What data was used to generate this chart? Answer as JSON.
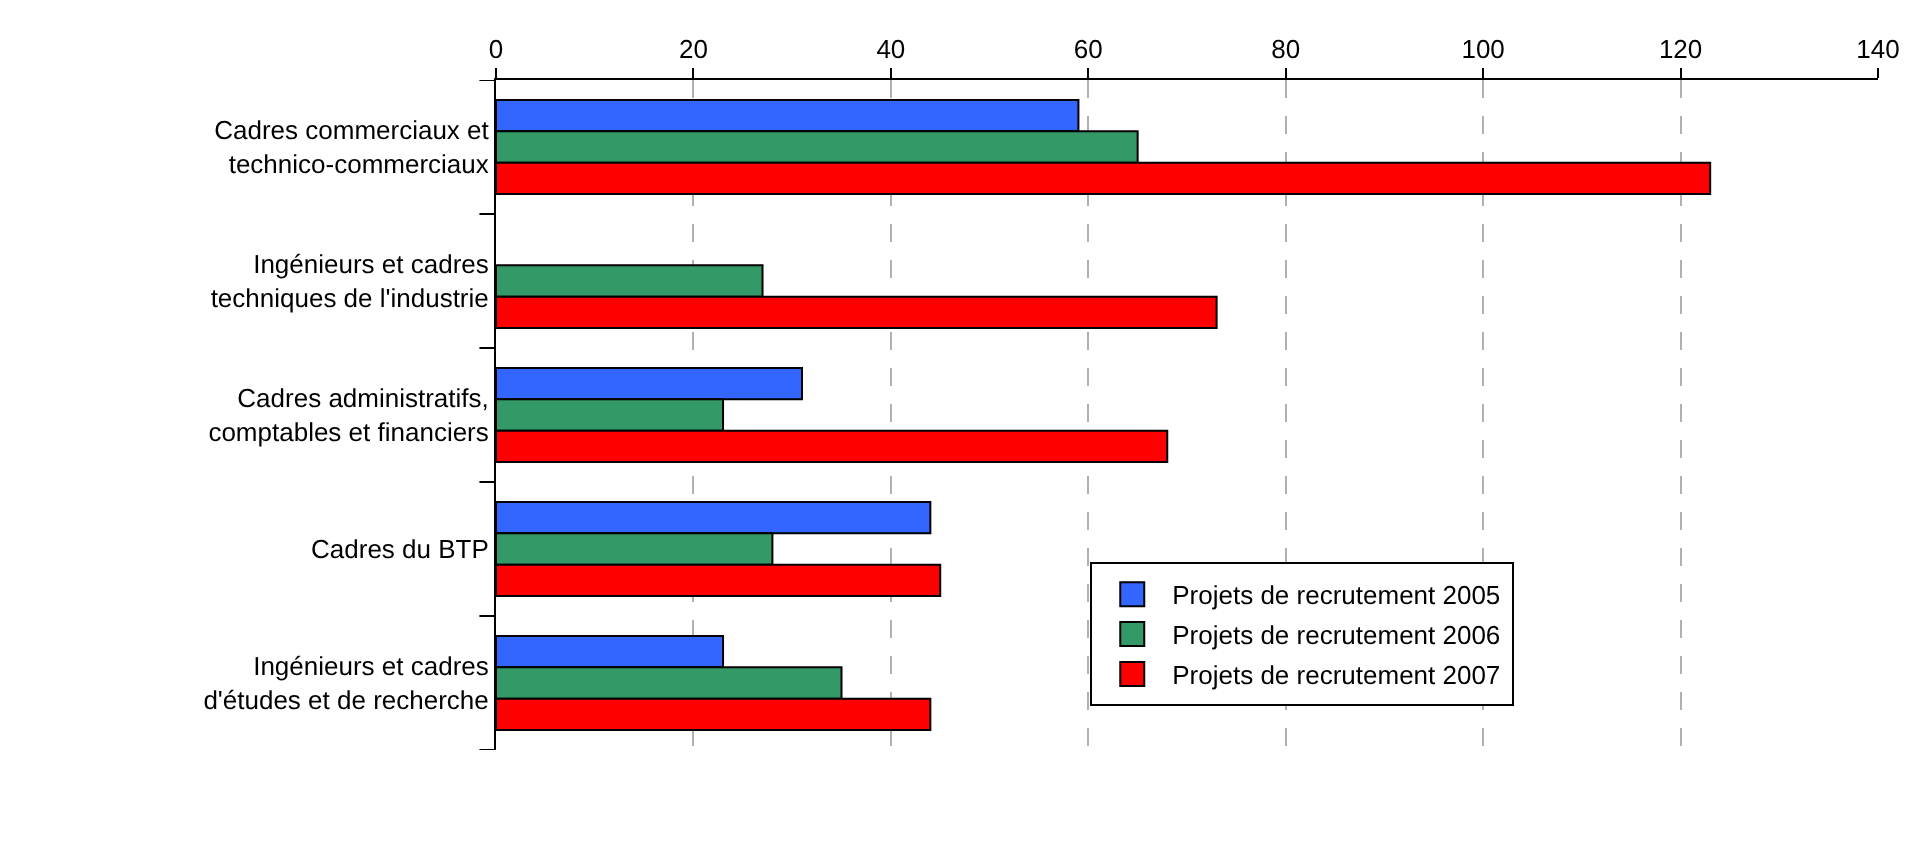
{
  "chart_data": {
    "type": "bar",
    "orientation": "horizontal",
    "categories": [
      "Cadres commerciaux et technico-commerciaux",
      "Ingénieurs et cadres techniques de l'industrie",
      "Cadres administratifs, comptables et financiers",
      "Cadres du BTP",
      "Ingénieurs et cadres d'études et de recherche"
    ],
    "series": [
      {
        "name": "Projets de recrutement 2005",
        "color": "#3366ff",
        "values": [
          59,
          null,
          31,
          44,
          23
        ]
      },
      {
        "name": "Projets de recrutement 2006",
        "color": "#339966",
        "values": [
          65,
          27,
          23,
          28,
          35
        ]
      },
      {
        "name": "Projets de recrutement 2007",
        "color": "#ff0000",
        "values": [
          123,
          73,
          68,
          45,
          44
        ]
      }
    ],
    "xlim": [
      0,
      140
    ],
    "xticks": [
      0,
      20,
      40,
      60,
      80,
      100,
      120,
      140
    ],
    "grid": "x",
    "legend": "bottom right"
  }
}
